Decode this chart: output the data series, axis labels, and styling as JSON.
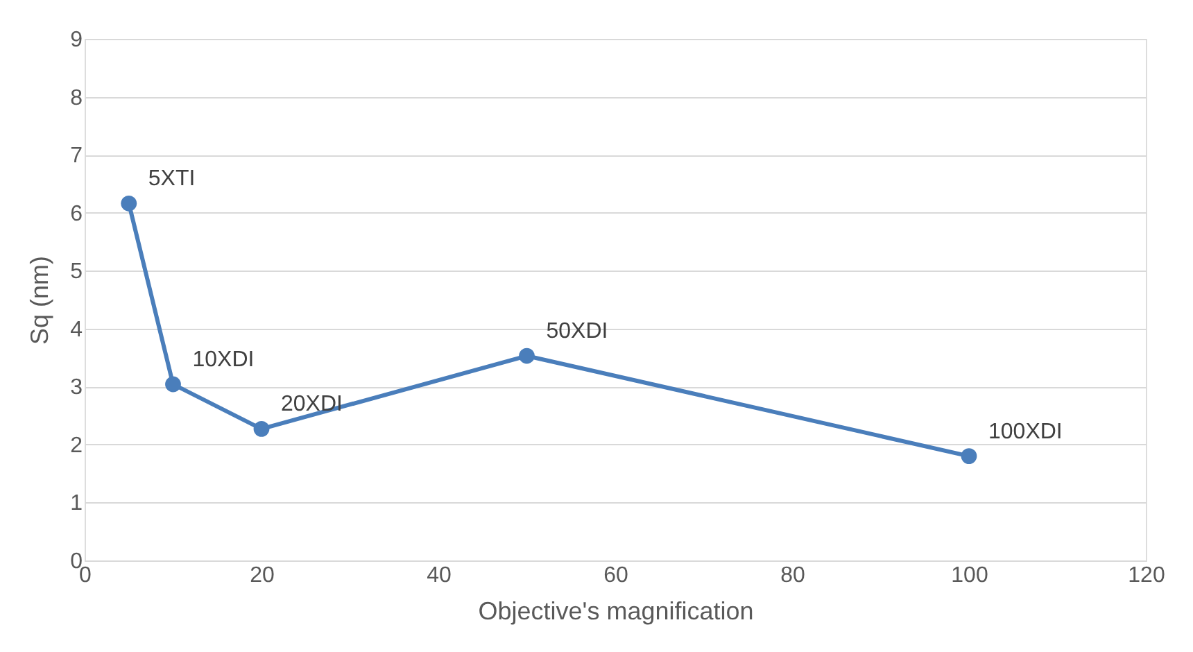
{
  "chart_data": {
    "type": "line",
    "xlabel": "Objective's magnification",
    "ylabel": "Sq (nm)",
    "x": [
      5,
      10,
      20,
      50,
      100
    ],
    "series": [
      {
        "color": "#4a7ebb",
        "values": [
          6.16,
          3.04,
          2.27,
          3.53,
          1.8
        ]
      }
    ],
    "xlim": [
      0,
      120
    ],
    "xticks": [
      0,
      20,
      40,
      60,
      80,
      100,
      120
    ],
    "ylim": [
      0,
      9
    ],
    "yticks": [
      0,
      1,
      2,
      3,
      4,
      5,
      6,
      7,
      8,
      9
    ],
    "grid": "y",
    "marker": "circle",
    "line_style": "solid",
    "annotations": [
      {
        "text": "5XTI",
        "x": 5,
        "y": 6.16
      },
      {
        "text": "10XDI",
        "x": 10,
        "y": 3.04
      },
      {
        "text": "20XDI",
        "x": 20,
        "y": 2.27
      },
      {
        "text": "50XDI",
        "x": 50,
        "y": 3.53
      },
      {
        "text": "100XDI",
        "x": 100,
        "y": 1.8
      }
    ]
  }
}
